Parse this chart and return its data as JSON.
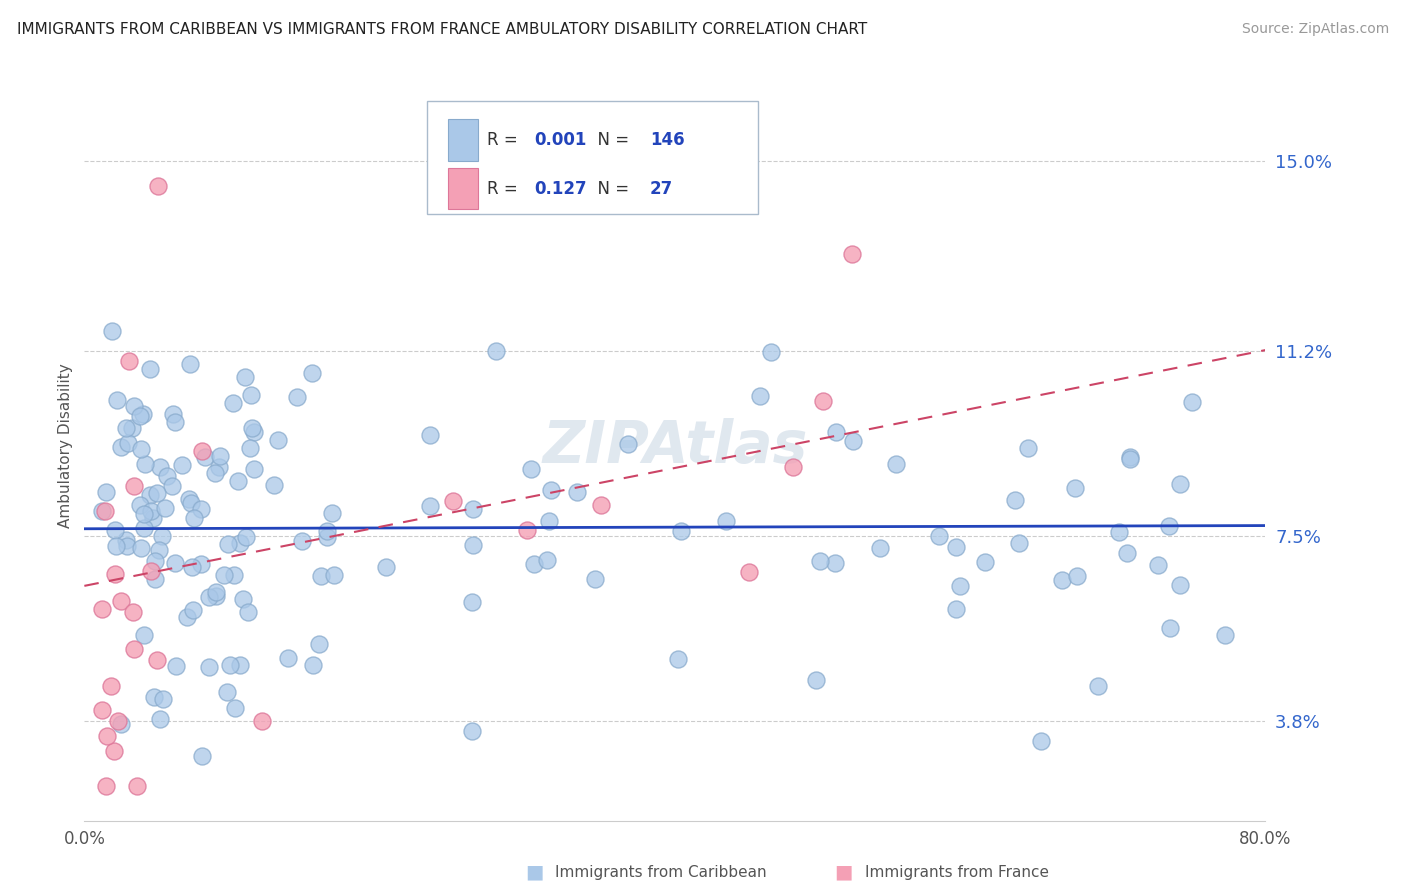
{
  "title": "IMMIGRANTS FROM CARIBBEAN VS IMMIGRANTS FROM FRANCE AMBULATORY DISABILITY CORRELATION CHART",
  "source": "Source: ZipAtlas.com",
  "ylabel": "Ambulatory Disability",
  "xlim": [
    0.0,
    0.8
  ],
  "ylim": [
    0.018,
    0.168
  ],
  "yticks": [
    0.038,
    0.075,
    0.112,
    0.15
  ],
  "ytick_labels": [
    "3.8%",
    "7.5%",
    "11.2%",
    "15.0%"
  ],
  "xticks": [
    0.0,
    0.1,
    0.2,
    0.3,
    0.4,
    0.5,
    0.6,
    0.7,
    0.8
  ],
  "xtick_labels": [
    "0.0%",
    "",
    "",
    "",
    "",
    "",
    "",
    "",
    "80.0%"
  ],
  "caribbean_color": "#aac8e8",
  "caribbean_edge_color": "#88aacc",
  "france_color": "#f4a0b5",
  "france_edge_color": "#dd7799",
  "trend_caribbean_color": "#2244bb",
  "trend_france_color": "#cc4466",
  "R_caribbean": 0.001,
  "N_caribbean": 146,
  "R_france": 0.127,
  "N_france": 27,
  "watermark": "ZIPAtlas",
  "legend_label1": "Immigrants from Caribbean",
  "legend_label2": "Immigrants from France"
}
